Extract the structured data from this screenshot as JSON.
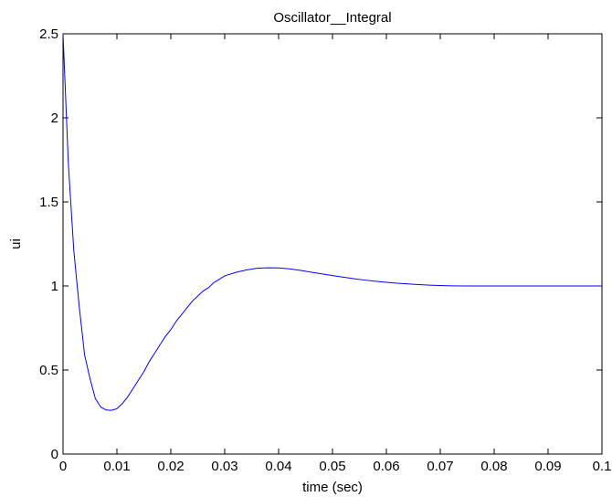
{
  "chart_data": {
    "type": "line",
    "title": "Oscillator__Integral",
    "xlabel": "time (sec)",
    "ylabel": "ui",
    "xlim": [
      0,
      0.1
    ],
    "ylim": [
      0,
      2.5
    ],
    "grid": false,
    "legend": "none",
    "line_color": "#0000ff",
    "x_ticks": [
      "0",
      "0.01",
      "0.02",
      "0.03",
      "0.04",
      "0.05",
      "0.06",
      "0.07",
      "0.08",
      "0.09",
      "0.1"
    ],
    "y_ticks": [
      "0",
      "0.5",
      "1",
      "1.5",
      "2",
      "2.5"
    ],
    "series": [
      {
        "x": [
          0,
          0.001,
          0.002,
          0.003,
          0.004,
          0.005,
          0.006,
          0.007,
          0.008,
          0.009,
          0.01,
          0.011,
          0.012,
          0.013,
          0.014,
          0.015,
          0.016,
          0.017,
          0.018,
          0.019,
          0.02,
          0.021,
          0.022,
          0.023,
          0.024,
          0.025,
          0.026,
          0.027,
          0.028,
          0.029,
          0.03,
          0.032,
          0.034,
          0.036,
          0.038,
          0.04,
          0.042,
          0.044,
          0.046,
          0.048,
          0.05,
          0.052,
          0.054,
          0.056,
          0.058,
          0.06,
          0.062,
          0.064,
          0.066,
          0.068,
          0.07,
          0.072,
          0.075,
          0.08,
          0.085,
          0.09,
          0.095,
          0.1
        ],
        "y": [
          2.5,
          1.72,
          1.21,
          0.88,
          0.59,
          0.45,
          0.33,
          0.28,
          0.262,
          0.26,
          0.27,
          0.3,
          0.34,
          0.39,
          0.44,
          0.49,
          0.55,
          0.6,
          0.65,
          0.7,
          0.74,
          0.79,
          0.83,
          0.87,
          0.91,
          0.94,
          0.97,
          0.99,
          1.02,
          1.04,
          1.06,
          1.08,
          1.095,
          1.105,
          1.108,
          1.107,
          1.102,
          1.093,
          1.082,
          1.072,
          1.062,
          1.052,
          1.043,
          1.035,
          1.028,
          1.022,
          1.016,
          1.012,
          1.008,
          1.005,
          1.003,
          1.001,
          1.0,
          1.0,
          1.0,
          1.0,
          1.0,
          1.0
        ]
      }
    ]
  }
}
